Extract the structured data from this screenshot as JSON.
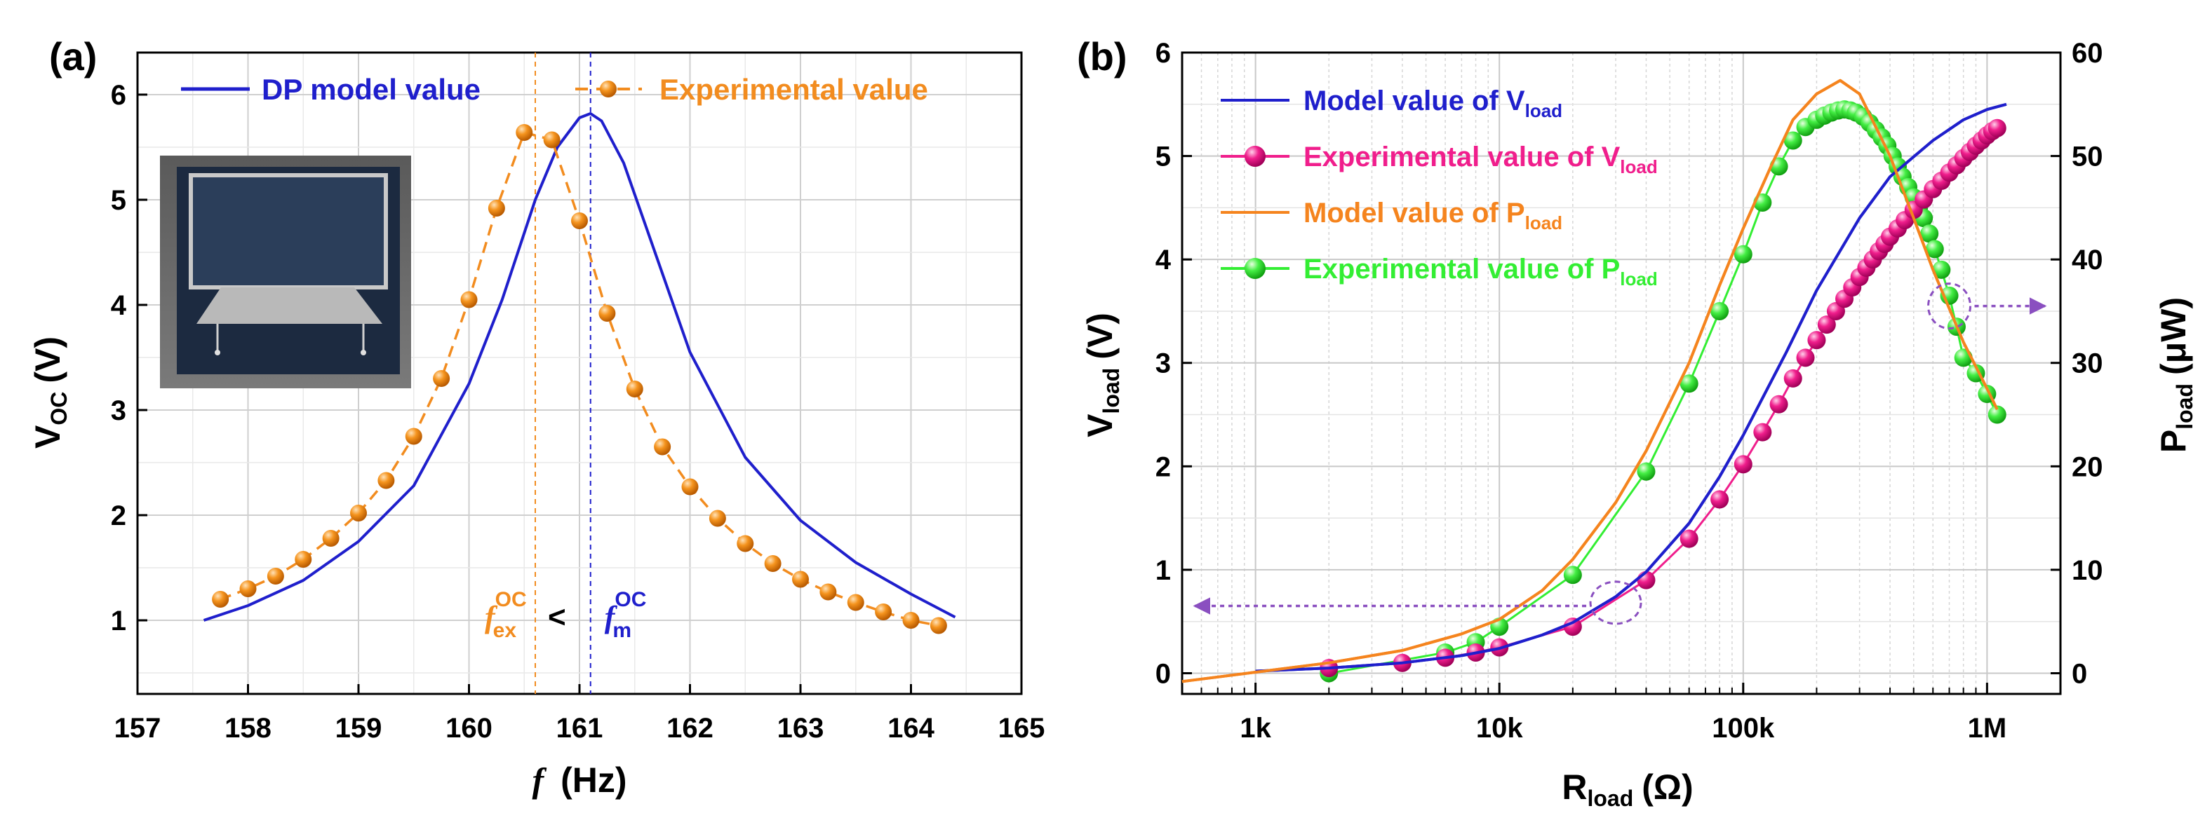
{
  "panels": {
    "a": {
      "label": "(a)"
    },
    "b": {
      "label": "(b)"
    }
  },
  "colors": {
    "model": "#1f1fcc",
    "experimental_a": "#f28c1f",
    "experimental_v": "#f01e8c",
    "model_p": "#f5841e",
    "experimental_p": "#33ee33",
    "arrow": "#8a4fc0",
    "grid": "#d8d8d8"
  },
  "chart_data": [
    {
      "type": "line",
      "panel": "a",
      "xlabel_var": "f",
      "xlabel_unit": "(Hz)",
      "ylabel_main": "V",
      "ylabel_sub": "OC",
      "ylabel_unit": "(V)",
      "xlim": [
        157,
        165
      ],
      "ylim": [
        0.3,
        6.4
      ],
      "xticks": [
        157,
        158,
        159,
        160,
        161,
        162,
        163,
        164,
        165
      ],
      "yticks": [
        1,
        2,
        3,
        4,
        5,
        6
      ],
      "grid": true,
      "legend": {
        "placement": "top",
        "entries": [
          "DP model value",
          "Experimental value"
        ]
      },
      "series": [
        {
          "name": "DP model value",
          "style": "solid-line",
          "x": [
            157.6,
            158.0,
            158.5,
            159.0,
            159.5,
            160.0,
            160.3,
            160.6,
            160.8,
            161.0,
            161.1,
            161.2,
            161.4,
            161.6,
            162.0,
            162.5,
            163.0,
            163.5,
            164.0,
            164.4
          ],
          "y": [
            1.0,
            1.14,
            1.38,
            1.75,
            2.28,
            3.25,
            4.05,
            5.0,
            5.5,
            5.78,
            5.82,
            5.75,
            5.35,
            4.75,
            3.55,
            2.55,
            1.95,
            1.55,
            1.25,
            1.03
          ]
        },
        {
          "name": "Experimental value",
          "style": "dashed-line-with-spheres",
          "x": [
            157.75,
            158.0,
            158.25,
            158.5,
            158.75,
            159.0,
            159.25,
            159.5,
            159.75,
            160.0,
            160.25,
            160.5,
            160.75,
            161.0,
            161.25,
            161.5,
            161.75,
            162.0,
            162.25,
            162.5,
            162.75,
            163.0,
            163.25,
            163.5,
            163.75,
            164.0,
            164.25
          ],
          "y": [
            1.2,
            1.3,
            1.42,
            1.58,
            1.78,
            2.02,
            2.33,
            2.75,
            3.3,
            4.05,
            4.92,
            5.64,
            5.57,
            4.8,
            3.92,
            3.2,
            2.65,
            2.27,
            1.97,
            1.73,
            1.54,
            1.39,
            1.27,
            1.17,
            1.08,
            1.0,
            0.95
          ]
        }
      ],
      "annotations": {
        "f_ex": {
          "x": 160.6,
          "var": "f",
          "sub": "ex",
          "sup": "OC"
        },
        "comparator": "<",
        "f_m": {
          "x": 161.1,
          "var": "f",
          "sub": "m",
          "sup": "OC"
        }
      }
    },
    {
      "type": "line",
      "panel": "b",
      "x_scale": "log",
      "xlabel_main": "R",
      "xlabel_sub": "load",
      "xlabel_unit": "(Ω)",
      "ylabel_main": "V",
      "ylabel_sub": "load",
      "ylabel_unit": "(V)",
      "y2label_main": "P",
      "y2label_sub": "load",
      "y2label_unit": "(μW)",
      "xlim": [
        500,
        2000000
      ],
      "ylim": [
        -0.2,
        6
      ],
      "y2lim": [
        -2,
        60
      ],
      "xticks": [
        1000,
        10000,
        100000,
        1000000
      ],
      "xtick_labels": [
        "1k",
        "10k",
        "100k",
        "1M"
      ],
      "yticks": [
        0,
        1,
        2,
        3,
        4,
        5,
        6
      ],
      "y2ticks": [
        0,
        10,
        20,
        30,
        40,
        50,
        60
      ],
      "grid": true,
      "legend": {
        "placement": "top-left",
        "entries": [
          {
            "main": "Model value of V",
            "sub": "load"
          },
          {
            "main": "Experimental value of V",
            "sub": "load"
          },
          {
            "main": "Model value of P",
            "sub": "load"
          },
          {
            "main": "Experimental value of P",
            "sub": "load"
          }
        ]
      },
      "series": [
        {
          "name": "Model value of Vload",
          "axis": "left",
          "style": "solid-line",
          "x": [
            1000,
            2000,
            4000,
            7000,
            10000,
            15000,
            20000,
            30000,
            40000,
            60000,
            80000,
            100000,
            150000,
            200000,
            300000,
            400000,
            600000,
            800000,
            1000000,
            1200000
          ],
          "y": [
            0.02,
            0.05,
            0.1,
            0.17,
            0.24,
            0.37,
            0.49,
            0.74,
            0.98,
            1.45,
            1.9,
            2.3,
            3.1,
            3.7,
            4.4,
            4.8,
            5.15,
            5.35,
            5.45,
            5.5
          ]
        },
        {
          "name": "Experimental value of Vload",
          "axis": "left",
          "style": "line-with-spheres",
          "x": [
            2000,
            4000,
            6000,
            8000,
            10000,
            20000,
            40000,
            60000,
            80000,
            100000,
            120000,
            140000,
            160000,
            180000,
            200000,
            220000,
            240000,
            260000,
            280000,
            300000,
            320000,
            340000,
            360000,
            380000,
            400000,
            430000,
            460000,
            500000,
            550000,
            600000,
            650000,
            700000,
            750000,
            800000,
            850000,
            900000,
            950000,
            1000000,
            1050000,
            1100000
          ],
          "y": [
            0.05,
            0.1,
            0.15,
            0.2,
            0.25,
            0.45,
            0.9,
            1.3,
            1.68,
            2.02,
            2.33,
            2.6,
            2.85,
            3.05,
            3.22,
            3.37,
            3.5,
            3.62,
            3.73,
            3.83,
            3.92,
            4.0,
            4.08,
            4.15,
            4.22,
            4.3,
            4.38,
            4.48,
            4.58,
            4.68,
            4.76,
            4.84,
            4.91,
            4.98,
            5.04,
            5.1,
            5.15,
            5.2,
            5.24,
            5.27
          ]
        },
        {
          "name": "Model value of Pload",
          "axis": "right",
          "style": "solid-line",
          "x": [
            500,
            1000,
            2000,
            4000,
            7000,
            10000,
            15000,
            20000,
            30000,
            40000,
            60000,
            80000,
            100000,
            130000,
            160000,
            200000,
            250000,
            300000,
            400000,
            500000,
            600000,
            800000,
            1000000,
            1100000
          ],
          "y": [
            -0.8,
            0.1,
            1.0,
            2.2,
            3.8,
            5.2,
            8.0,
            11.0,
            16.5,
            21.5,
            30.0,
            37.5,
            43.0,
            49.0,
            53.5,
            56.0,
            57.3,
            56.0,
            50.0,
            44.0,
            39.0,
            32.0,
            27.5,
            25.5
          ]
        },
        {
          "name": "Experimental value of Pload",
          "axis": "right",
          "style": "line-with-spheres",
          "x": [
            2000,
            6000,
            8000,
            10000,
            20000,
            40000,
            60000,
            80000,
            100000,
            120000,
            140000,
            160000,
            180000,
            200000,
            215000,
            230000,
            245000,
            260000,
            275000,
            290000,
            310000,
            330000,
            350000,
            370000,
            390000,
            410000,
            430000,
            450000,
            475000,
            500000,
            525000,
            550000,
            580000,
            610000,
            650000,
            700000,
            750000,
            800000,
            900000,
            1000000,
            1100000
          ],
          "y": [
            0.0,
            2.0,
            3.0,
            4.5,
            9.5,
            19.5,
            28.0,
            35.0,
            40.5,
            45.5,
            49.0,
            51.5,
            52.8,
            53.5,
            53.9,
            54.2,
            54.4,
            54.5,
            54.4,
            54.2,
            53.8,
            53.2,
            52.5,
            51.8,
            51.0,
            50.0,
            49.0,
            48.0,
            47.0,
            46.0,
            45.0,
            44.0,
            42.5,
            41.0,
            39.0,
            36.5,
            33.5,
            30.5,
            29.0,
            27.0,
            25.0
          ]
        }
      ],
      "annotations": {
        "left_arrow_from_x": 30000,
        "right_arrow_from_x": 700000
      }
    }
  ]
}
